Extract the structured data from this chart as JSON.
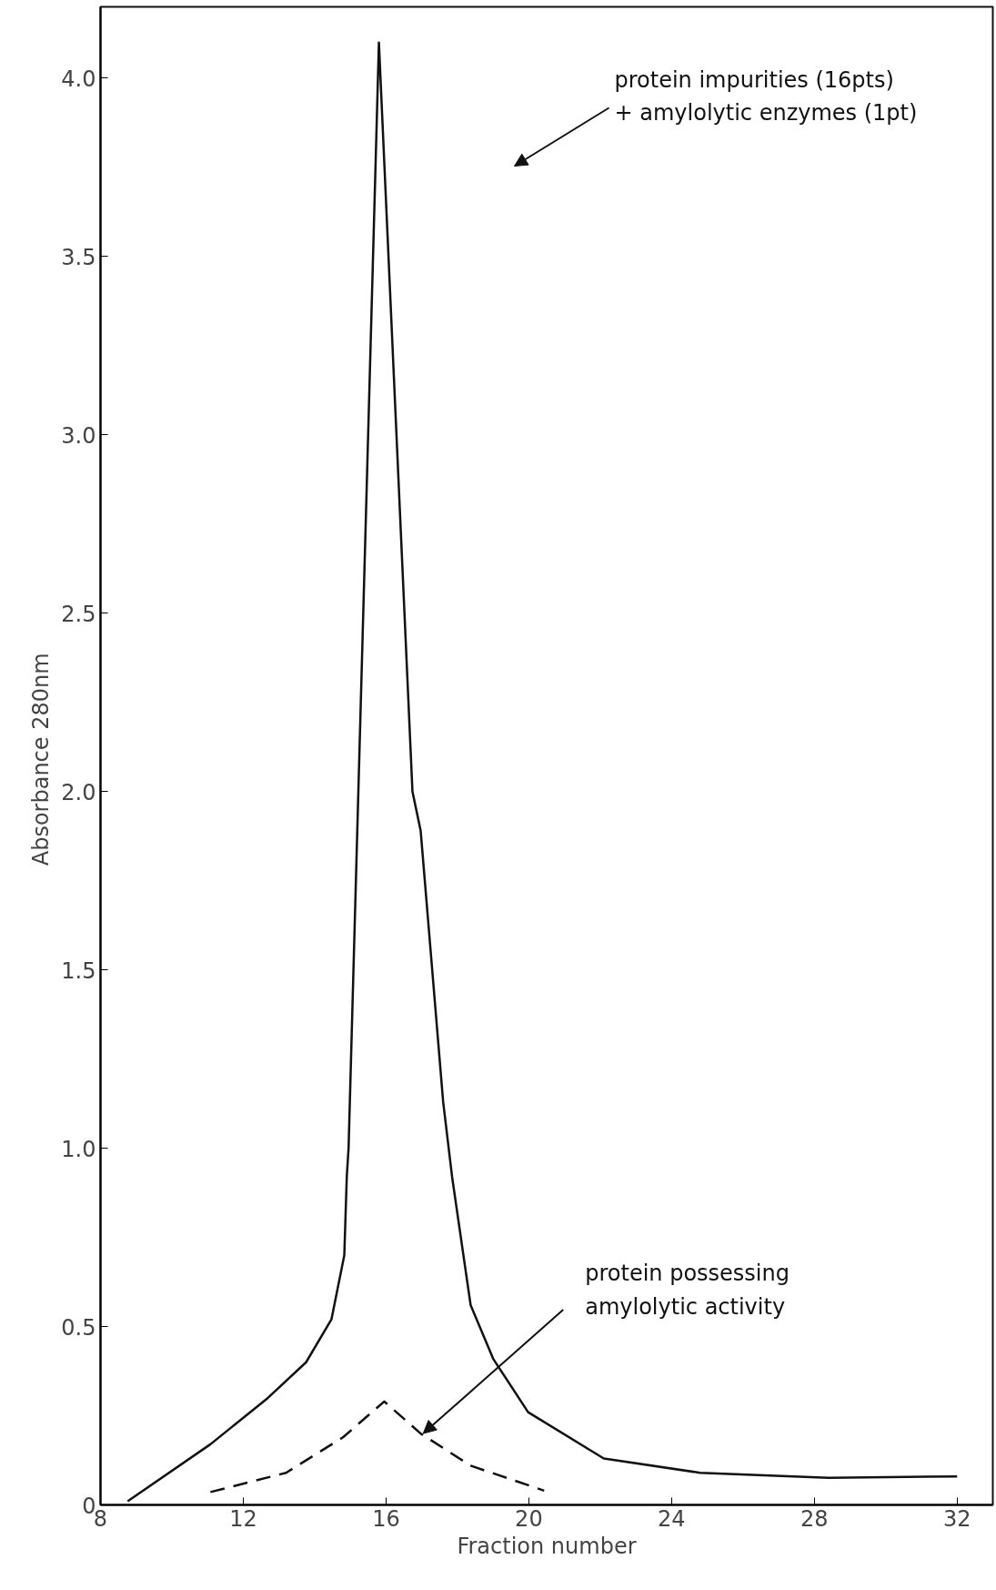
{
  "chart_data": {
    "type": "line",
    "xlabel": "Fraction number",
    "ylabel": "Absorbance  280nm",
    "xlim": [
      8,
      33
    ],
    "ylim": [
      0,
      4.2
    ],
    "xticks": [
      8,
      12,
      16,
      20,
      24,
      28,
      32
    ],
    "yticks": [
      0,
      0.5,
      {
        "value": 1.0,
        "label": "1.0"
      },
      1.5,
      {
        "value": 2.0,
        "label": "2.0"
      },
      2.5,
      {
        "value": 3.0,
        "label": "3.0"
      },
      3.5,
      {
        "value": 4.0,
        "label": "4.0"
      }
    ],
    "grid": false,
    "marker": "none",
    "series": [
      {
        "color": "#111111",
        "line_style": "solid",
        "x": [
          8.76,
          11.08,
          12.69,
          13.76,
          14.47,
          14.83,
          14.9,
          14.95,
          15.8,
          16.74,
          16.97,
          17.6,
          17.85,
          18.37,
          19.0,
          19.98,
          22.1,
          24.8,
          28.4,
          32.0
        ],
        "values": [
          0.01,
          0.17,
          0.3,
          0.4,
          0.52,
          0.7,
          0.92,
          1.0,
          4.1,
          2.0,
          1.89,
          1.13,
          0.92,
          0.56,
          0.41,
          0.26,
          0.13,
          0.09,
          0.076,
          0.08
        ]
      },
      {
        "color": "#111111",
        "line_style": "dashed",
        "x": [
          11.08,
          13.2,
          14.8,
          15.95,
          16.97,
          18.37,
          20.43
        ],
        "values": [
          0.036,
          0.09,
          0.19,
          0.29,
          0.2,
          0.11,
          0.04
        ]
      }
    ],
    "annotations": [
      "protein impurities (16pts)\n+ amylolytic enzymes (1pt)",
      {
        "text": "protein possessing\namylolytic activity",
        "x": 17.04,
        "y": 0.2
      }
    ]
  }
}
